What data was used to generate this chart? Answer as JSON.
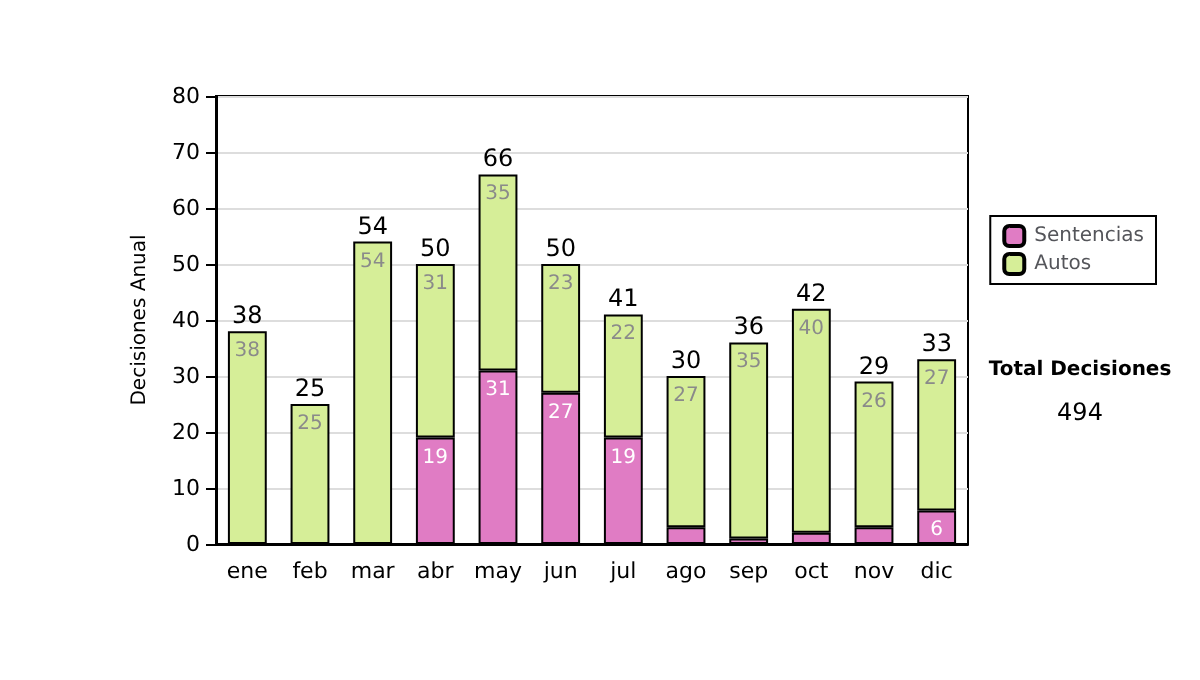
{
  "chart_data": {
    "type": "bar",
    "stacked": true,
    "ylabel": "Decisiones Anual",
    "categories": [
      "ene",
      "feb",
      "mar",
      "abr",
      "may",
      "jun",
      "jul",
      "ago",
      "sep",
      "oct",
      "nov",
      "dic"
    ],
    "series": [
      {
        "name": "Sentencias",
        "color": "#e07cc4",
        "values": [
          0,
          0,
          0,
          19,
          31,
          27,
          19,
          3,
          1,
          2,
          3,
          6
        ],
        "value_labels": [
          null,
          null,
          null,
          "19",
          "31",
          "27",
          "19",
          null,
          null,
          null,
          null,
          "6"
        ]
      },
      {
        "name": "Autos",
        "color": "#d6ee98",
        "values": [
          38,
          25,
          54,
          31,
          35,
          23,
          22,
          27,
          35,
          40,
          26,
          27
        ],
        "value_labels": [
          "38",
          "25",
          "54",
          "31",
          "35",
          "23",
          "22",
          "27",
          "35",
          "40",
          "26",
          "27"
        ]
      }
    ],
    "totals": [
      "38",
      "25",
      "54",
      "50",
      "66",
      "50",
      "41",
      "30",
      "36",
      "42",
      "29",
      "33"
    ],
    "ylim": [
      0,
      80
    ],
    "yticks": [
      0,
      10,
      20,
      30,
      40,
      50,
      60,
      70,
      80
    ],
    "grid": "y",
    "legend": "right",
    "annotations": [
      "Total Decisiones",
      "494"
    ]
  }
}
